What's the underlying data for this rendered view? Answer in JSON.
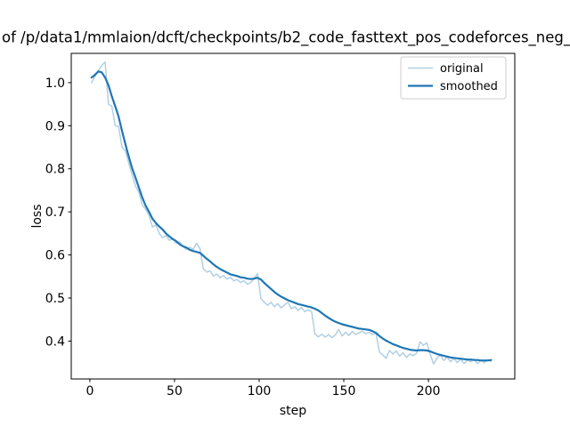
{
  "figure": {
    "background": "#ffffff"
  },
  "chart_data": {
    "type": "line",
    "title": "of /p/data1/mmlaion/dcft/checkpoints/b2_code_fasttext_pos_codeforces_neg_",
    "title_note": "title is clipped at both image edges",
    "xlabel": "step",
    "ylabel": "loss",
    "xlim": [
      -11,
      251
    ],
    "ylim": [
      0.312,
      1.068
    ],
    "xticks": [
      0,
      50,
      100,
      150,
      200
    ],
    "yticks": [
      0.4,
      0.5,
      0.6,
      0.7,
      0.8,
      0.9,
      1.0
    ],
    "grid": false,
    "legend": {
      "position": "upper right",
      "entries": [
        "original",
        "smoothed"
      ]
    },
    "x": [
      1,
      3,
      5,
      7,
      9,
      11,
      13,
      15,
      17,
      19,
      21,
      23,
      25,
      27,
      29,
      31,
      33,
      35,
      37,
      39,
      41,
      43,
      45,
      47,
      49,
      51,
      53,
      55,
      57,
      59,
      61,
      63,
      65,
      67,
      69,
      71,
      73,
      75,
      77,
      79,
      81,
      83,
      85,
      87,
      89,
      91,
      93,
      95,
      97,
      99,
      101,
      103,
      105,
      107,
      109,
      111,
      113,
      115,
      117,
      119,
      121,
      123,
      125,
      127,
      129,
      131,
      133,
      135,
      137,
      139,
      141,
      143,
      145,
      147,
      149,
      151,
      153,
      155,
      157,
      159,
      161,
      163,
      165,
      167,
      169,
      171,
      173,
      175,
      177,
      179,
      181,
      183,
      185,
      187,
      189,
      191,
      193,
      195,
      197,
      199,
      201,
      203,
      205,
      207,
      209,
      211,
      213,
      215,
      217,
      219,
      221,
      223,
      225,
      227,
      229,
      231,
      233,
      235,
      237
    ],
    "series": [
      {
        "name": "original",
        "color": "#b1cfe5",
        "line_width": 1.5,
        "values": [
          1.0,
          1.015,
          1.028,
          1.04,
          1.048,
          0.95,
          0.945,
          0.9,
          0.898,
          0.85,
          0.841,
          0.813,
          0.785,
          0.76,
          0.745,
          0.716,
          0.706,
          0.692,
          0.665,
          0.67,
          0.65,
          0.64,
          0.645,
          0.634,
          0.638,
          0.627,
          0.63,
          0.62,
          0.613,
          0.618,
          0.613,
          0.627,
          0.615,
          0.568,
          0.56,
          0.563,
          0.551,
          0.556,
          0.547,
          0.552,
          0.544,
          0.548,
          0.54,
          0.543,
          0.536,
          0.54,
          0.532,
          0.536,
          0.545,
          0.557,
          0.499,
          0.49,
          0.483,
          0.49,
          0.48,
          0.487,
          0.477,
          0.484,
          0.49,
          0.475,
          0.48,
          0.471,
          0.478,
          0.468,
          0.473,
          0.468,
          0.416,
          0.41,
          0.416,
          0.409,
          0.415,
          0.408,
          0.414,
          0.427,
          0.412,
          0.42,
          0.413,
          0.422,
          0.415,
          0.419,
          0.423,
          0.417,
          0.42,
          0.415,
          0.419,
          0.375,
          0.368,
          0.36,
          0.378,
          0.37,
          0.377,
          0.365,
          0.373,
          0.362,
          0.37,
          0.366,
          0.372,
          0.398,
          0.39,
          0.396,
          0.37,
          0.347,
          0.36,
          0.368,
          0.355,
          0.363,
          0.352,
          0.36,
          0.35,
          0.358,
          0.348,
          0.356,
          0.352,
          0.358,
          0.348,
          0.355,
          0.35,
          0.356,
          0.353
        ]
      },
      {
        "name": "smoothed",
        "color": "#1f77b4",
        "line_width": 2.2,
        "values": [
          1.012,
          1.018,
          1.026,
          1.024,
          1.012,
          0.994,
          0.968,
          0.945,
          0.921,
          0.888,
          0.857,
          0.828,
          0.801,
          0.779,
          0.756,
          0.733,
          0.714,
          0.7,
          0.684,
          0.674,
          0.666,
          0.659,
          0.65,
          0.643,
          0.637,
          0.632,
          0.625,
          0.62,
          0.617,
          0.612,
          0.609,
          0.607,
          0.605,
          0.598,
          0.591,
          0.585,
          0.578,
          0.572,
          0.567,
          0.563,
          0.559,
          0.555,
          0.553,
          0.551,
          0.548,
          0.547,
          0.545,
          0.544,
          0.545,
          0.547,
          0.543,
          0.535,
          0.528,
          0.521,
          0.514,
          0.508,
          0.503,
          0.499,
          0.495,
          0.492,
          0.489,
          0.486,
          0.484,
          0.482,
          0.48,
          0.478,
          0.475,
          0.471,
          0.465,
          0.459,
          0.454,
          0.449,
          0.445,
          0.442,
          0.439,
          0.437,
          0.435,
          0.433,
          0.431,
          0.429,
          0.428,
          0.427,
          0.426,
          0.423,
          0.419,
          0.412,
          0.406,
          0.401,
          0.397,
          0.393,
          0.39,
          0.387,
          0.384,
          0.382,
          0.38,
          0.379,
          0.378,
          0.379,
          0.379,
          0.378,
          0.376,
          0.373,
          0.37,
          0.368,
          0.366,
          0.364,
          0.362,
          0.361,
          0.36,
          0.359,
          0.358,
          0.357,
          0.357,
          0.356,
          0.356,
          0.355,
          0.355,
          0.355,
          0.356
        ]
      }
    ],
    "colors": {
      "original_line": "#b1cfe5",
      "smoothed_line": "#1f77b4",
      "spine": "#000000",
      "tick": "#000000",
      "legend_border": "#cccccc",
      "background": "#ffffff"
    }
  }
}
